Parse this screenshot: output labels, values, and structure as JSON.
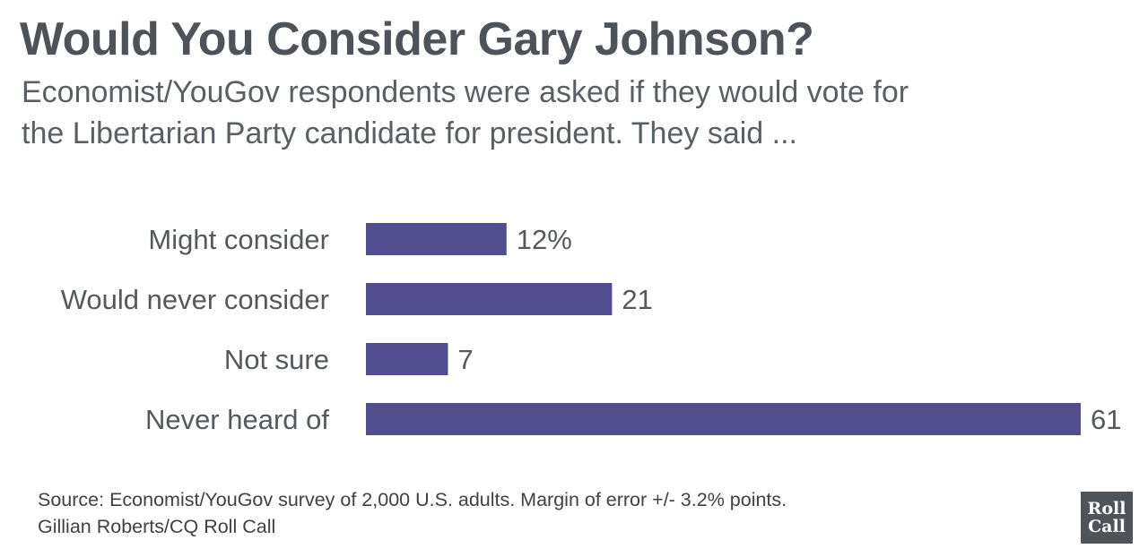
{
  "header": {
    "title": "Would You Consider Gary Johnson?",
    "subtitle_line1": "Economist/YouGov respondents were asked if they would vote for",
    "subtitle_line2": "the Libertarian Party candidate for president. They said ..."
  },
  "chart_data": {
    "type": "bar",
    "orientation": "horizontal",
    "categories": [
      "Might consider",
      "Would never consider",
      "Not sure",
      "Never heard of"
    ],
    "values": [
      12,
      21,
      7,
      61
    ],
    "value_labels": [
      "12%",
      "21",
      "7",
      "61"
    ],
    "unit": "%",
    "xlim": [
      0,
      61
    ],
    "grid": false,
    "bar_color": "#524d8f",
    "label_color": "#55595d"
  },
  "footer": {
    "source": "Source: Economist/YouGov survey of 2,000 U.S. adults. Margin of error +/- 3.2% points.",
    "credit": "Gillian Roberts/CQ Roll Call"
  },
  "logo": {
    "line1": "Roll",
    "line2": "Call",
    "color": "#4f5459"
  }
}
